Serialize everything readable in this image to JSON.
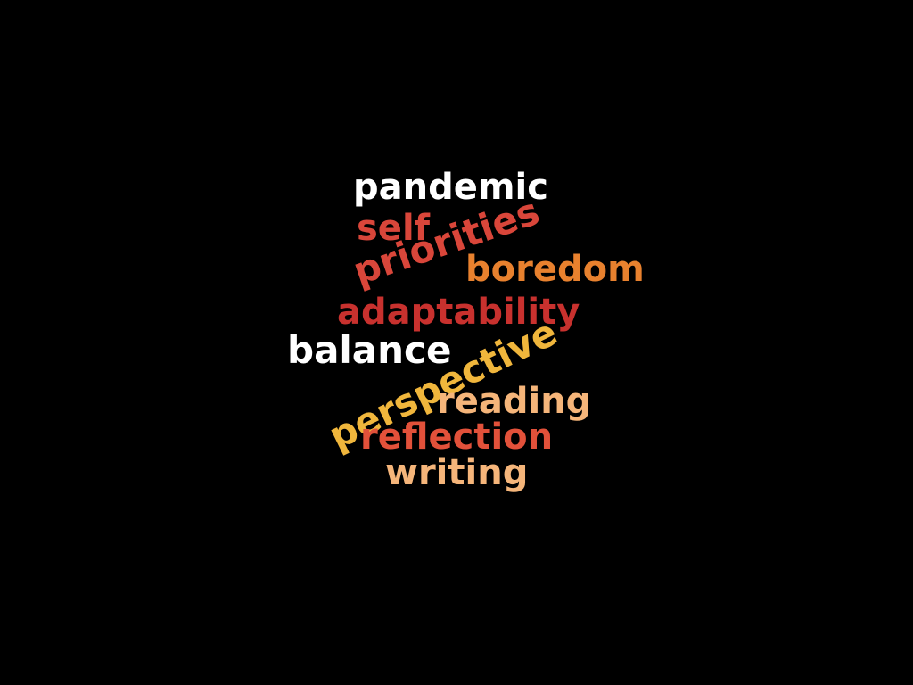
{
  "word_cloud": {
    "background_color": "#000000",
    "words": [
      {
        "key": "pandemic",
        "text": "pandemic",
        "color": "#ffffff"
      },
      {
        "key": "self",
        "text": "self",
        "color": "#d9463a"
      },
      {
        "key": "priorities",
        "text": "priorities",
        "color": "#d9463a"
      },
      {
        "key": "boredom",
        "text": "boredom",
        "color": "#e8812e"
      },
      {
        "key": "adaptability",
        "text": "adaptability",
        "color": "#c8312e"
      },
      {
        "key": "balance",
        "text": "balance",
        "color": "#ffffff"
      },
      {
        "key": "perspective",
        "text": "perspective",
        "color": "#f0b63c"
      },
      {
        "key": "reading",
        "text": "reading",
        "color": "#f5b57a"
      },
      {
        "key": "reflection",
        "text": "reflection",
        "color": "#e2513a"
      },
      {
        "key": "writing",
        "text": "writing",
        "color": "#f5b57a"
      }
    ]
  }
}
